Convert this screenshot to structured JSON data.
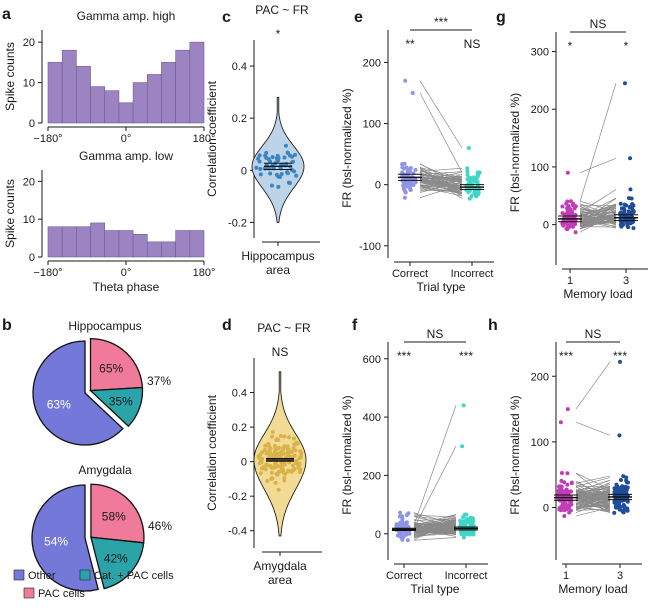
{
  "panels": {
    "a": "a",
    "b": "b",
    "c": "c",
    "d": "d",
    "e": "e",
    "f": "f",
    "g": "g",
    "h": "h"
  },
  "colors": {
    "hist": "#9c84c2",
    "other": "#7479d9",
    "cat_pac": "#2aa3a9",
    "pac": "#f07a9a",
    "hippo_violin": "#bcd3e8",
    "hippo_dot": "#3a86c0",
    "amyg_violin": "#f2dc95",
    "amyg_dot": "#d9b24a",
    "correct_e": "#8e95e8",
    "incorrect_e": "#3fd6c6",
    "load1": "#c23cb7",
    "load3": "#1f4d9a",
    "line": "#8a8a8a"
  },
  "chart_data": [
    {
      "id": "a-top",
      "type": "bar",
      "title": "Gamma amp. high",
      "ylabel": "Spike counts",
      "xticks": [
        "−180°",
        "0°",
        "180°"
      ],
      "yticks": [
        "0",
        "10",
        "20"
      ],
      "ylim": [
        0,
        23
      ],
      "values": [
        15,
        18,
        14,
        9,
        8,
        5,
        10,
        12,
        15,
        18,
        20
      ]
    },
    {
      "id": "a-bottom",
      "type": "bar",
      "title": "Gamma amp. low",
      "xlabel": "Theta phase",
      "ylabel": "Spike counts",
      "xticks": [
        "−180°",
        "0°",
        "180°"
      ],
      "yticks": [
        "0",
        "10",
        "20"
      ],
      "ylim": [
        0,
        23
      ],
      "values": [
        8,
        8,
        8,
        9,
        7,
        7,
        6,
        4,
        4,
        7,
        7
      ]
    },
    {
      "id": "b-hippocampus",
      "type": "pie",
      "title": "Hippocampus",
      "slices": [
        {
          "name": "Other",
          "label": "63%",
          "value": 63
        },
        {
          "name": "Cat. + PAC cells",
          "label": "35%",
          "value": 35
        },
        {
          "name": "PAC cells",
          "label": "65%",
          "value": 65
        }
      ],
      "exploded_label": "37%"
    },
    {
      "id": "b-amygdala",
      "type": "pie",
      "title": "Amygdala",
      "slices": [
        {
          "name": "Other",
          "label": "54%",
          "value": 54
        },
        {
          "name": "Cat. + PAC cells",
          "label": "42%",
          "value": 42
        },
        {
          "name": "PAC cells",
          "label": "58%",
          "value": 58
        }
      ],
      "exploded_label": "46%"
    },
    {
      "id": "c",
      "type": "violin",
      "title": "PAC ~ FR",
      "ylabel": "Correlation coefficient",
      "xlabel_lines": [
        "Hippocampus",
        "area"
      ],
      "significance": "*",
      "yticks": [
        -0.2,
        0,
        0.2,
        0.4
      ],
      "ylim": [
        -0.26,
        0.5
      ],
      "mean": 0.015,
      "sem": 0.012,
      "range": [
        -0.2,
        0.28
      ]
    },
    {
      "id": "d",
      "type": "violin",
      "title": "PAC ~ FR",
      "ylabel": "Correlation coefficient",
      "xlabel_lines": [
        "Amygdala",
        "area"
      ],
      "significance": "NS",
      "yticks": [
        -0.4,
        -0.2,
        0,
        0.2,
        0.4
      ],
      "ylim": [
        -0.5,
        0.6
      ],
      "mean": 0.01,
      "sem": 0.008,
      "range": [
        -0.43,
        0.52
      ]
    },
    {
      "id": "e",
      "type": "paired-scatter",
      "ylabel": "FR (bsl-normalized %)",
      "xlabel": "Trial type",
      "categories": [
        "Correct",
        "Incorrect"
      ],
      "yticks": [
        -100,
        0,
        100,
        200
      ],
      "ylim": [
        -120,
        240
      ],
      "means": [
        12,
        -4
      ],
      "sems": [
        5,
        4
      ],
      "annotations": [
        "**",
        "NS"
      ],
      "bracket": "***"
    },
    {
      "id": "f",
      "type": "paired-scatter",
      "ylabel": "FR (bsl-normalized %)",
      "xlabel": "Trial type",
      "categories": [
        "Correct",
        "Incorrect"
      ],
      "yticks": [
        0,
        200,
        400,
        600
      ],
      "ylim": [
        -90,
        630
      ],
      "means": [
        15,
        18
      ],
      "sems": [
        4,
        5
      ],
      "annotations": [
        "***",
        "***"
      ],
      "bracket": "NS"
    },
    {
      "id": "g",
      "type": "paired-scatter",
      "ylabel": "FR (bsl-normalized %)",
      "xlabel": "Memory load",
      "categories": [
        "1",
        "3"
      ],
      "yticks": [
        0,
        100,
        200,
        300
      ],
      "ylim": [
        -70,
        320
      ],
      "means": [
        10,
        12
      ],
      "sems": [
        5,
        5
      ],
      "annotations": [
        "*",
        "*"
      ],
      "bracket": "NS"
    },
    {
      "id": "h",
      "type": "paired-scatter",
      "ylabel": "FR (bsl-normalized %)",
      "xlabel": "Memory load",
      "categories": [
        "1",
        "3"
      ],
      "yticks": [
        0,
        100,
        200
      ],
      "ylim": [
        -80,
        240
      ],
      "means": [
        15,
        16
      ],
      "sems": [
        4,
        4
      ],
      "annotations": [
        "***",
        "***"
      ],
      "bracket": "NS"
    }
  ],
  "legend": [
    {
      "name": "Other",
      "color": "#7479d9"
    },
    {
      "name": "Cat. + PAC cells",
      "color": "#2aa3a9"
    },
    {
      "name": "PAC cells",
      "color": "#f07a9a"
    }
  ]
}
